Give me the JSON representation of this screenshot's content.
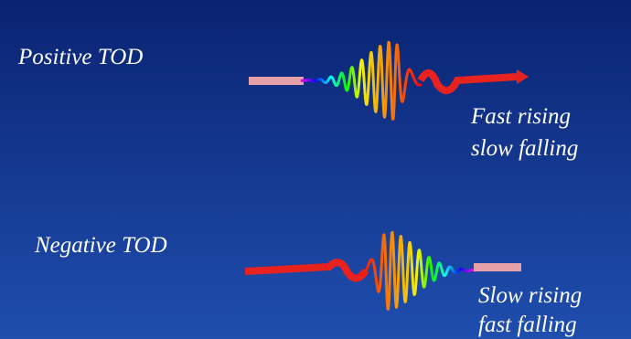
{
  "positive": {
    "label": "Positive TOD",
    "note_line1": "Fast rising",
    "note_line2": "slow falling"
  },
  "negative": {
    "label": "Negative TOD",
    "note_line1": "Slow rising",
    "note_line2": "fast falling"
  }
}
